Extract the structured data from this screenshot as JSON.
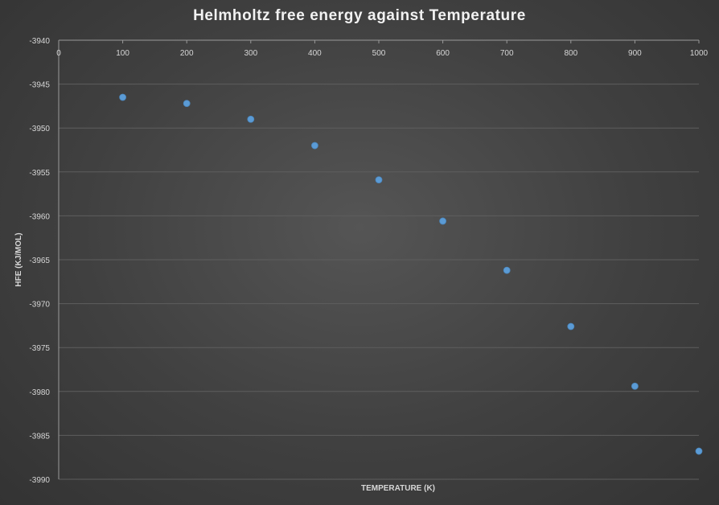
{
  "chart_data": {
    "type": "scatter",
    "title": "Helmholtz free energy against Temperature",
    "xlabel": "TEMPERATURE (K)",
    "ylabel": "HFE (KJ/MOL)",
    "xlim": [
      0,
      1000
    ],
    "ylim": [
      -3990,
      -3940
    ],
    "x_ticks": [
      0,
      100,
      200,
      300,
      400,
      500,
      600,
      700,
      800,
      900,
      1000
    ],
    "y_ticks": [
      -3940,
      -3945,
      -3950,
      -3955,
      -3960,
      -3965,
      -3970,
      -3975,
      -3980,
      -3985,
      -3990
    ],
    "x_tick_labels": [
      "0",
      "100",
      "200",
      "300",
      "400",
      "500",
      "600",
      "700",
      "800",
      "900",
      "1000"
    ],
    "y_tick_labels": [
      "-3940",
      "-3945",
      "-3950",
      "-3955",
      "-3960",
      "-3965",
      "-3970",
      "-3975",
      "-3980",
      "-3985",
      "-3990"
    ],
    "grid": true,
    "x_axis_position": "top",
    "series": [
      {
        "x": [
          100,
          200,
          300,
          400,
          500,
          600,
          700,
          800,
          900,
          1000
        ],
        "y": [
          -3946.5,
          -3947.2,
          -3949.0,
          -3952.0,
          -3955.9,
          -3960.6,
          -3966.2,
          -3972.6,
          -3979.4,
          -3986.8
        ]
      }
    ],
    "colors": {
      "marker": "#5b9bd5",
      "grid": "#5e5e5e",
      "axis": "#9a9a9a",
      "text": "#d6d6d6"
    }
  }
}
